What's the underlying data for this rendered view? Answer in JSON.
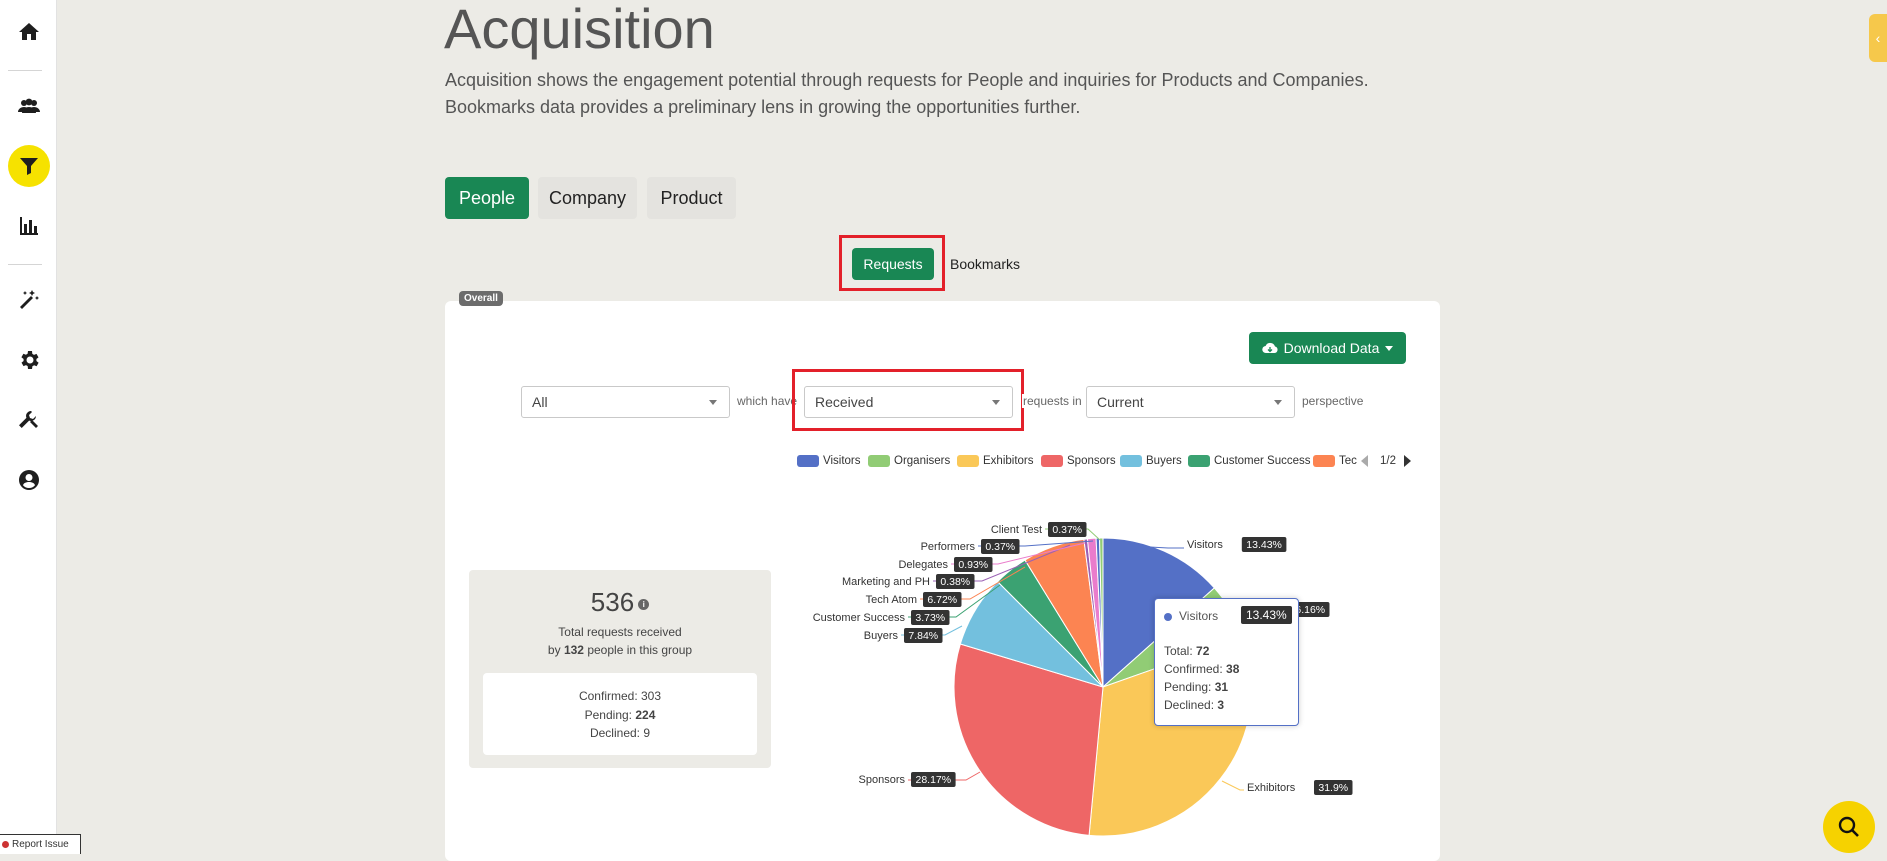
{
  "page": {
    "title": "Acquisition",
    "description_line1": "Acquisition shows the engagement potential through requests for People and inquiries for Products and Companies.",
    "description_line2": "Bookmarks data provides a preliminary lens in growing the opportunities further."
  },
  "main_tabs": [
    "People",
    "Company",
    "Product"
  ],
  "sub_tabs": [
    "Requests",
    "Bookmarks"
  ],
  "badge": "Overall",
  "download_label": "Download Data",
  "filters": {
    "group": "All",
    "which_have": "which have",
    "direction": "Received",
    "requests_in": "requests in",
    "perspective_value": "Current",
    "perspective": "perspective"
  },
  "legend": {
    "items": [
      "Visitors",
      "Organisers",
      "Exhibitors",
      "Sponsors",
      "Buyers",
      "Customer Success",
      "Tec"
    ],
    "page": "1/2"
  },
  "stats": {
    "total": "536",
    "line1": "Total requests received",
    "by": "by",
    "people": "132",
    "line2_rest": "people in this group",
    "confirmed_label": "Confirmed:",
    "confirmed": "303",
    "pending_label": "Pending:",
    "pending": "224",
    "declined_label": "Declined:",
    "declined": "9"
  },
  "tooltip": {
    "name": "Visitors",
    "pct": "13.43%",
    "total_label": "Total:",
    "total": "72",
    "confirmed_label": "Confirmed:",
    "confirmed": "38",
    "pending_label": "Pending:",
    "pending": "31",
    "declined_label": "Declined:",
    "declined": "3"
  },
  "report_label": "Report Issue",
  "chart_data": {
    "type": "pie",
    "title": "",
    "series": [
      {
        "name": "Visitors",
        "value": 13.43,
        "label": "13.43%",
        "color": "#5470c6"
      },
      {
        "name": "Organisers",
        "value": 6.16,
        "label": "6.16%",
        "color": "#91cc75",
        "display_name": "...ers"
      },
      {
        "name": "Exhibitors",
        "value": 31.9,
        "label": "31.9%",
        "color": "#fac858"
      },
      {
        "name": "Sponsors",
        "value": 28.17,
        "label": "28.17%",
        "color": "#ee6666"
      },
      {
        "name": "Buyers",
        "value": 7.84,
        "label": "7.84%",
        "color": "#73c0de"
      },
      {
        "name": "Customer Success",
        "value": 3.73,
        "label": "3.73%",
        "color": "#3ba272"
      },
      {
        "name": "Tech Atom",
        "value": 6.72,
        "label": "6.72%",
        "color": "#fc8452"
      },
      {
        "name": "Marketing and PH",
        "value": 0.38,
        "label": "0.38%",
        "color": "#9a60b4"
      },
      {
        "name": "Delegates",
        "value": 0.93,
        "label": "0.93%",
        "color": "#ea7ccc"
      },
      {
        "name": "Performers",
        "value": 0.37,
        "label": "0.37%",
        "color": "#5470c6"
      },
      {
        "name": "Client Test",
        "value": 0.37,
        "label": "0.37%",
        "color": "#91cc75"
      }
    ]
  }
}
